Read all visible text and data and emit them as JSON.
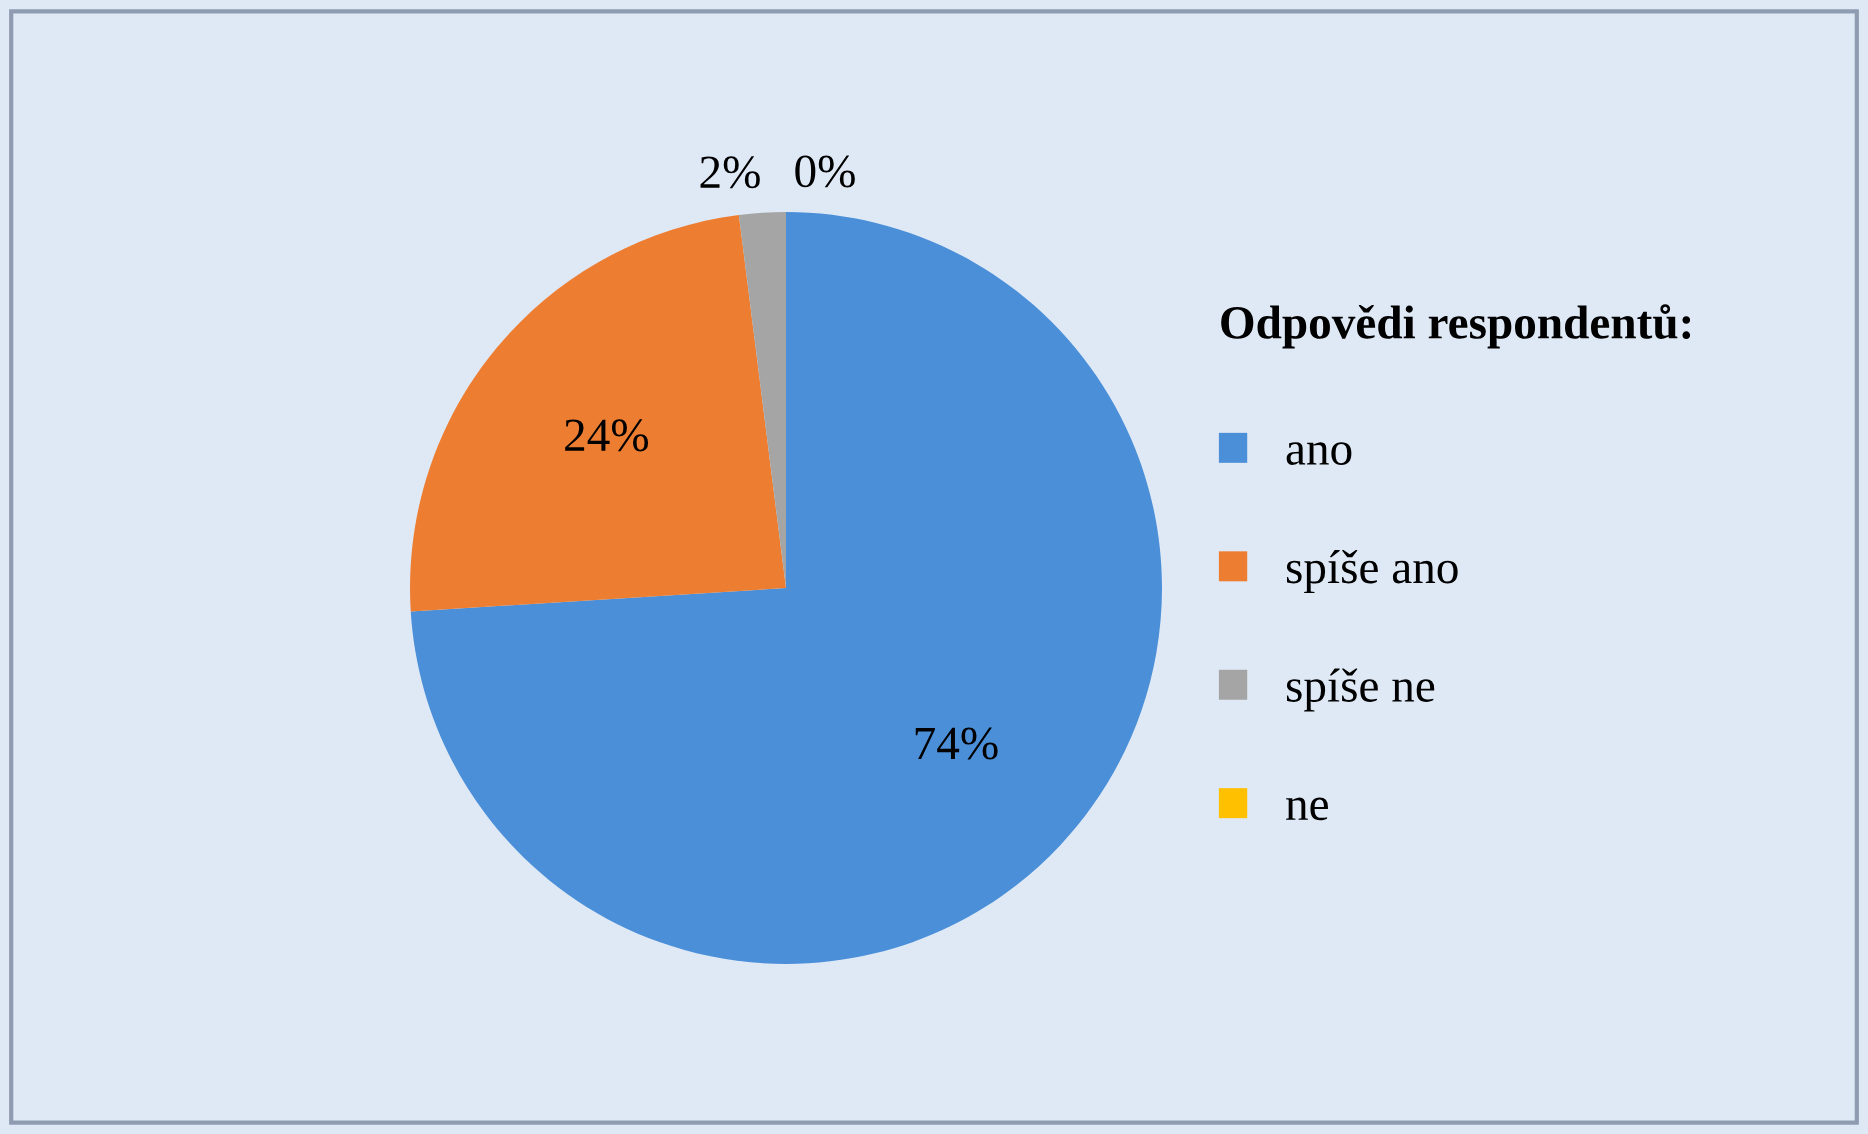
{
  "chart_data": {
    "type": "pie",
    "legend_title": "Odpovědi respondentů:",
    "legend": "right",
    "categories": [
      "ano",
      "spíše ano",
      "spíše ne",
      "ne"
    ],
    "values": [
      74,
      24,
      2,
      0
    ],
    "value_labels": [
      "74%",
      "24%",
      "2%",
      "0%"
    ],
    "colors": [
      "#4a8fd8",
      "#ed7d31",
      "#a5a5a5",
      "#ffc000"
    ]
  }
}
